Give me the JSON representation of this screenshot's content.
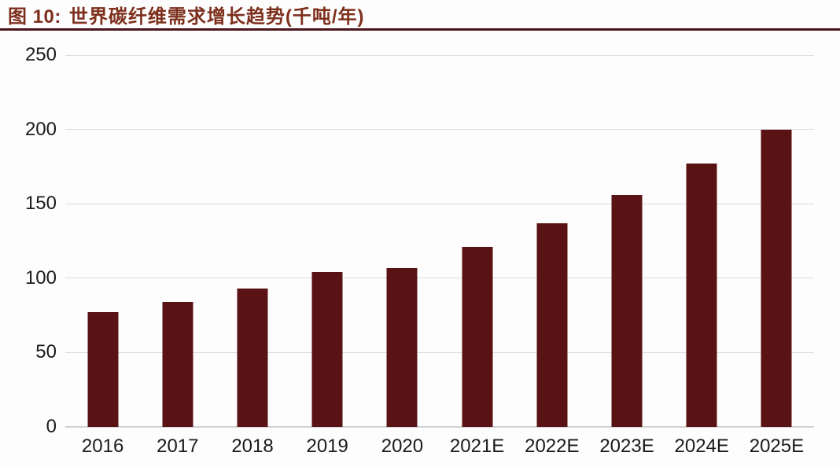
{
  "figure": {
    "label": "图 10:",
    "title": "世界碳纤维需求增长趋势(千吨/年)"
  },
  "colors": {
    "bar": "#5a1314",
    "title_text": "#7d2f1c",
    "header_rule": "#4a151a",
    "gridline": "#dcdcdc",
    "axis_text": "#1a1a1a",
    "background": "#fdfdfd"
  },
  "chart_data": {
    "type": "bar",
    "title": "世界碳纤维需求增长趋势(千吨/年)",
    "categories": [
      "2016",
      "2017",
      "2018",
      "2019",
      "2020",
      "2021E",
      "2022E",
      "2023E",
      "2024E",
      "2025E"
    ],
    "values": [
      77,
      84,
      93,
      104,
      107,
      121,
      137,
      156,
      177,
      200
    ],
    "xlabel": "",
    "ylabel": "",
    "ylim": [
      0,
      250
    ],
    "yticks": [
      0,
      50,
      100,
      150,
      200,
      250
    ],
    "ytick_labels": [
      "0",
      "50",
      "100",
      "150",
      "200",
      "250"
    ],
    "grid": true,
    "legend_position": "none",
    "series_color": "#5a1314"
  }
}
